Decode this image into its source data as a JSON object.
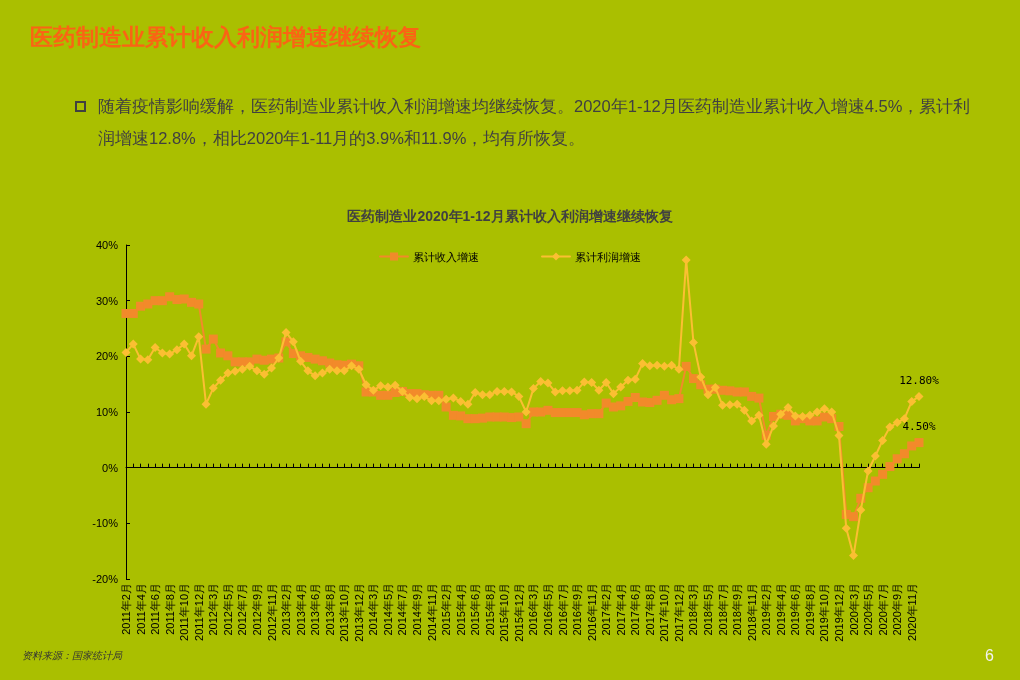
{
  "chart_data": {
    "type": "line",
    "title": "医药制造业累计收入利润增速继续恢复",
    "subtitle": "医药制造业2020年1-12月累计收入利润增速继续恢复",
    "annotations": [
      "随着疫情影响缓解，医药制造业累计收入利润增速均继续恢复。2020年1-12月医药制造业累计收入增速4.5%，累计利润增速12.8%，相比2020年1-11月的3.9%和11.9%，均有所恢复。",
      "资料来源：国家统计局",
      "6"
    ],
    "categories": [
      "2011年2月",
      null,
      "2011年4月",
      null,
      "2011年6月",
      null,
      "2011年8月",
      null,
      "2011年10月",
      null,
      "2011年12月",
      null,
      "2012年3月",
      null,
      "2012年5月",
      null,
      "2012年7月",
      null,
      "2012年9月",
      null,
      "2012年11月",
      null,
      "2013年2月",
      null,
      "2013年4月",
      null,
      "2013年6月",
      null,
      "2013年8月",
      null,
      "2013年10月",
      null,
      "2013年12月",
      null,
      "2014年3月",
      null,
      "2014年5月",
      null,
      "2014年7月",
      null,
      "2014年9月",
      null,
      "2014年11月",
      null,
      "2015年2月",
      null,
      "2015年4月",
      null,
      "2015年6月",
      null,
      "2015年8月",
      null,
      "2015年10月",
      null,
      "2015年12月",
      null,
      "2016年3月",
      null,
      "2016年5月",
      null,
      "2016年7月",
      null,
      "2016年9月",
      null,
      "2016年11月",
      null,
      "2017年2月",
      null,
      "2017年4月",
      null,
      "2017年6月",
      null,
      "2017年8月",
      null,
      "2017年10月",
      null,
      "2017年12月",
      null,
      "2018年3月",
      null,
      "2018年5月",
      null,
      "2018年7月",
      null,
      "2018年9月",
      null,
      "2018年11月",
      null,
      "2019年2月",
      null,
      "2019年4月",
      null,
      "2019年6月",
      null,
      "2019年8月",
      null,
      "2019年10月",
      null,
      "2019年12月",
      null,
      "2020年3月",
      null,
      "2020年5月",
      null,
      "2020年7月",
      null,
      "2020年9月",
      null,
      "2020年11月",
      null
    ],
    "series": [
      {
        "name": "累计收入增速",
        "color": "#f28a2a",
        "marker": "square",
        "values": [
          27.7,
          27.7,
          29.0,
          29.4,
          30.0,
          30.0,
          30.7,
          30.2,
          30.3,
          29.7,
          29.4,
          21.3,
          23.1,
          20.6,
          20.1,
          19.0,
          19.0,
          19.0,
          19.5,
          19.3,
          19.5,
          19.7,
          22.6,
          20.5,
          20.1,
          19.8,
          19.5,
          19.2,
          18.8,
          18.5,
          18.4,
          18.6,
          18.3,
          13.6,
          13.6,
          13.0,
          13.0,
          13.5,
          13.7,
          13.3,
          13.3,
          13.1,
          13.0,
          13.0,
          10.9,
          9.4,
          9.3,
          8.8,
          8.8,
          8.9,
          9.1,
          9.1,
          9.1,
          9.0,
          9.1,
          7.9,
          10.0,
          10.0,
          10.3,
          9.9,
          9.9,
          9.9,
          9.9,
          9.5,
          9.7,
          9.7,
          11.6,
          10.9,
          11.1,
          11.9,
          12.6,
          11.8,
          11.7,
          12.1,
          13.0,
          12.2,
          12.4,
          18.2,
          16.0,
          14.9,
          14.1,
          14.1,
          13.9,
          13.8,
          13.6,
          13.6,
          12.8,
          12.5,
          5.8,
          9.2,
          9.6,
          9.4,
          8.4,
          8.8,
          8.4,
          8.4,
          9.1,
          8.8,
          7.4,
          -8.4,
          -8.8,
          -5.5,
          -3.6,
          -2.4,
          -1.2,
          0.2,
          1.6,
          2.5,
          3.9,
          4.5
        ],
        "value_labels": [
          null,
          null,
          null,
          null,
          null,
          null,
          null,
          null,
          null,
          null,
          null,
          null,
          null,
          null,
          null,
          null,
          null,
          null,
          null,
          null,
          null,
          null,
          null,
          null,
          null,
          null,
          null,
          null,
          null,
          null,
          null,
          null,
          null,
          null,
          null,
          null,
          null,
          null,
          null,
          null,
          null,
          null,
          null,
          null,
          null,
          null,
          null,
          null,
          null,
          null,
          null,
          null,
          null,
          null,
          null,
          null,
          null,
          null,
          null,
          null,
          null,
          null,
          null,
          null,
          null,
          null,
          null,
          null,
          null,
          null,
          null,
          null,
          null,
          null,
          null,
          null,
          null,
          null,
          null,
          null,
          null,
          null,
          null,
          null,
          null,
          null,
          null,
          null,
          null,
          null,
          null,
          null,
          null,
          null,
          null,
          null,
          null,
          null,
          null,
          null,
          null,
          null,
          null,
          null,
          null,
          null,
          null,
          null,
          null,
          "4.50%"
        ]
      },
      {
        "name": "累计利润增速",
        "color": "#fbbf32",
        "marker": "diamond",
        "values": [
          20.7,
          22.2,
          19.5,
          19.4,
          21.6,
          20.6,
          20.4,
          21.2,
          22.2,
          20.1,
          23.5,
          11.4,
          14.3,
          15.7,
          17.0,
          17.3,
          17.7,
          18.2,
          17.4,
          16.8,
          17.9,
          19.7,
          24.3,
          22.6,
          19.1,
          17.4,
          16.5,
          17.0,
          17.7,
          17.4,
          17.4,
          18.3,
          17.7,
          14.9,
          13.9,
          14.7,
          14.5,
          14.8,
          13.7,
          12.6,
          12.4,
          12.8,
          12.0,
          12.0,
          12.3,
          12.5,
          11.9,
          11.4,
          13.5,
          13.1,
          13.1,
          13.7,
          13.7,
          13.6,
          12.8,
          10.0,
          14.2,
          15.5,
          15.2,
          13.6,
          13.8,
          13.8,
          13.9,
          15.4,
          15.3,
          13.9,
          15.3,
          13.3,
          14.5,
          15.7,
          15.9,
          18.7,
          18.3,
          18.4,
          18.2,
          18.4,
          17.7,
          37.3,
          22.5,
          16.3,
          13.1,
          14.4,
          11.2,
          11.3,
          11.4,
          10.3,
          8.4,
          9.4,
          4.2,
          7.5,
          9.6,
          10.8,
          9.3,
          9.2,
          9.4,
          10.0,
          10.6,
          10.0,
          5.8,
          -10.9,
          -15.8,
          -7.6,
          -0.6,
          2.1,
          4.9,
          7.3,
          8.1,
          8.8,
          11.9,
          12.8
        ],
        "value_labels": [
          null,
          null,
          null,
          null,
          null,
          null,
          null,
          null,
          null,
          null,
          null,
          null,
          null,
          null,
          null,
          null,
          null,
          null,
          null,
          null,
          null,
          null,
          null,
          null,
          null,
          null,
          null,
          null,
          null,
          null,
          null,
          null,
          null,
          null,
          null,
          null,
          null,
          null,
          null,
          null,
          null,
          null,
          null,
          null,
          null,
          null,
          null,
          null,
          null,
          null,
          null,
          null,
          null,
          null,
          null,
          null,
          null,
          null,
          null,
          null,
          null,
          null,
          null,
          null,
          null,
          null,
          null,
          null,
          null,
          null,
          null,
          null,
          null,
          null,
          null,
          null,
          null,
          null,
          null,
          null,
          null,
          null,
          null,
          null,
          null,
          null,
          null,
          null,
          null,
          null,
          null,
          null,
          null,
          null,
          null,
          null,
          null,
          null,
          null,
          null,
          null,
          null,
          null,
          null,
          null,
          null,
          null,
          null,
          null,
          "12.80%"
        ]
      }
    ],
    "ylim": [
      -20,
      40
    ],
    "yticks": [
      {
        "value": -20,
        "label": "-20%"
      },
      {
        "value": -10,
        "label": "-10%"
      },
      {
        "value": 0,
        "label": "0%"
      },
      {
        "value": 10,
        "label": "10%"
      },
      {
        "value": 20,
        "label": "20%"
      },
      {
        "value": 30,
        "label": "30%"
      },
      {
        "value": 40,
        "label": "40%"
      }
    ],
    "legend": "top"
  }
}
